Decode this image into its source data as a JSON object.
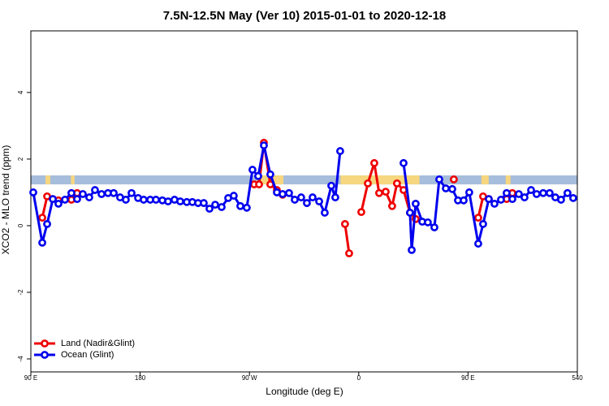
{
  "chart_data": {
    "type": "line",
    "title": "7.5N-12.5N May (Ver 10)   2015-01-01 to 2020-12-18",
    "x_label": "Longitude (deg E)",
    "y_label": "XCO2 - MLO trend (ppm)",
    "xlim": [
      90,
      540
    ],
    "ylim": [
      -4.39,
      5.85
    ],
    "xticks": [
      {
        "value": 90,
        "label": "90 E"
      },
      180,
      {
        "value": 270,
        "label": "90 W"
      },
      {
        "value": 360,
        "label": "0"
      },
      {
        "value": 450,
        "label": "90 E"
      },
      540
    ],
    "yticks": [
      4,
      2,
      0,
      -2,
      -4
    ],
    "legend": "bottom-left",
    "band": {
      "ylim": [
        1.24,
        1.51
      ],
      "color": "#a6bddb",
      "land_color": "#f6d67e",
      "land": [
        [
          102,
          106
        ],
        [
          123,
          126
        ],
        [
          276,
          298
        ],
        [
          345,
          410
        ],
        [
          461,
          467
        ],
        [
          481,
          485
        ]
      ]
    },
    "series": [
      {
        "name": "Land (Nadir&Glint)",
        "color": "#ee0000",
        "x": [
          99.4,
          103.4,
          108.1,
          112.7,
          123.4,
          128.1,
          null,
          273.9,
          277.9,
          281.9,
          287.2,
          292.6,
          297.3,
          null,
          348.7,
          352.1,
          null,
          362.1,
          367.5,
          372.8,
          376.8,
          382.2,
          387.5,
          391.5,
          396.9,
          402.2,
          406.9,
          null,
          438.3,
          null,
          458.4,
          462.4,
          467.1,
          null,
          481.8,
          486.5
        ],
        "values": [
          0.24,
          0.88,
          0.8,
          0.76,
          0.78,
          0.98,
          null,
          1.24,
          1.24,
          2.49,
          1.24,
          1.07,
          0.93,
          null,
          0.05,
          -0.83,
          null,
          0.41,
          1.27,
          1.88,
          0.98,
          1.02,
          0.59,
          1.27,
          1.07,
          0.39,
          0.2,
          null,
          1.39,
          null,
          0.24,
          0.88,
          0.8,
          null,
          0.8,
          0.98
        ]
      },
      {
        "name": "Ocean (Glint)",
        "color": "#0000ee",
        "x": [
          92.0,
          99.4,
          103.4,
          108.1,
          112.7,
          118.1,
          123.4,
          128.1,
          132.8,
          138.1,
          142.8,
          148.2,
          153.5,
          158.2,
          163.5,
          168.2,
          172.9,
          178.3,
          182.9,
          188.3,
          193.0,
          198.3,
          203.0,
          208.3,
          213.0,
          218.4,
          223.0,
          227.7,
          232.4,
          237.1,
          241.8,
          247.1,
          252.5,
          257.1,
          262.5,
          267.8,
          272.5,
          277.2,
          281.9,
          287.2,
          292.6,
          297.3,
          302.6,
          307.3,
          312.6,
          317.3,
          322.0,
          327.4,
          332.0,
          337.4,
          340.7,
          344.7,
          null,
          396.9,
          402.2,
          403.6,
          406.9,
          412.3,
          416.9,
          422.3,
          426.3,
          431.7,
          437.0,
          441.7,
          446.4,
          451.0,
          458.4,
          462.4,
          467.1,
          471.8,
          477.1,
          481.8,
          486.5,
          491.8,
          496.5,
          501.9,
          506.5,
          511.9,
          517.2,
          521.9,
          526.6,
          531.9,
          536.6
        ],
        "values": [
          1.0,
          -0.51,
          0.05,
          0.8,
          0.66,
          0.78,
          0.98,
          0.8,
          0.95,
          0.85,
          1.07,
          0.95,
          0.98,
          0.98,
          0.85,
          0.78,
          0.98,
          0.83,
          0.78,
          0.78,
          0.78,
          0.76,
          0.73,
          0.78,
          0.73,
          0.71,
          0.71,
          0.68,
          0.68,
          0.51,
          0.63,
          0.56,
          0.83,
          0.9,
          0.59,
          0.54,
          1.68,
          1.49,
          2.41,
          1.54,
          1.0,
          0.95,
          0.98,
          0.78,
          0.85,
          0.68,
          0.85,
          0.73,
          0.39,
          1.2,
          0.85,
          2.24,
          null,
          1.88,
          0.39,
          -0.73,
          0.66,
          0.12,
          0.1,
          -0.05,
          1.39,
          1.12,
          1.1,
          0.76,
          0.76,
          1.0,
          -0.54,
          0.05,
          0.8,
          0.66,
          0.78,
          0.98,
          0.8,
          0.95,
          0.85,
          1.07,
          0.95,
          0.98,
          0.98,
          0.85,
          0.78,
          0.98,
          0.83
        ]
      }
    ]
  }
}
